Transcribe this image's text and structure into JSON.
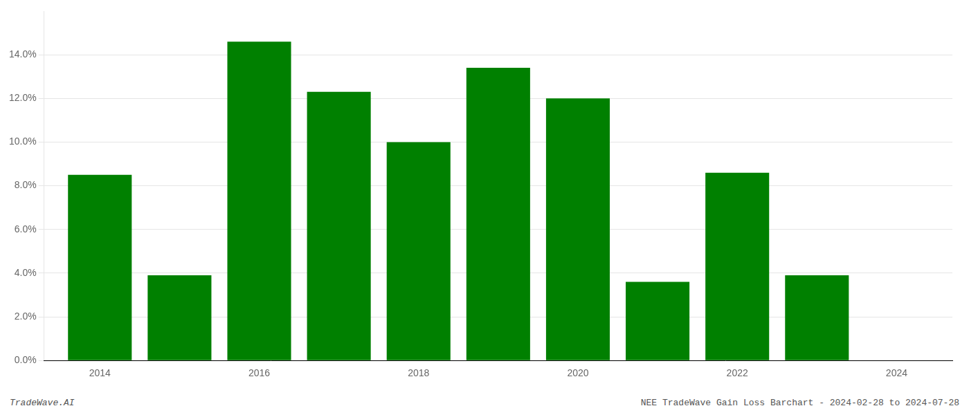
{
  "chart_data": {
    "type": "bar",
    "x": [
      2014,
      2015,
      2016,
      2017,
      2018,
      2019,
      2020,
      2021,
      2022,
      2023
    ],
    "values": [
      0.085,
      0.039,
      0.146,
      0.123,
      0.1,
      0.134,
      0.12,
      0.036,
      0.086,
      0.039
    ],
    "color": "#008000",
    "xlim": [
      2013.3,
      2024.7
    ],
    "xticks": [
      2014,
      2016,
      2018,
      2020,
      2022,
      2024
    ],
    "ylim": [
      0,
      0.16
    ],
    "yticks": [
      {
        "value": 0.0,
        "label": "0.0%"
      },
      {
        "value": 0.02,
        "label": "2.0%"
      },
      {
        "value": 0.04,
        "label": "4.0%"
      },
      {
        "value": 0.06,
        "label": "6.0%"
      },
      {
        "value": 0.08,
        "label": "8.0%"
      },
      {
        "value": 0.1,
        "label": "10.0%"
      },
      {
        "value": 0.12,
        "label": "12.0%"
      },
      {
        "value": 0.14,
        "label": "14.0%"
      }
    ],
    "grid": "y",
    "annotations": [
      "TradeWave.AI",
      "NEE TradeWave Gain Loss Barchart - 2024-02-28 to 2024-07-28"
    ]
  }
}
